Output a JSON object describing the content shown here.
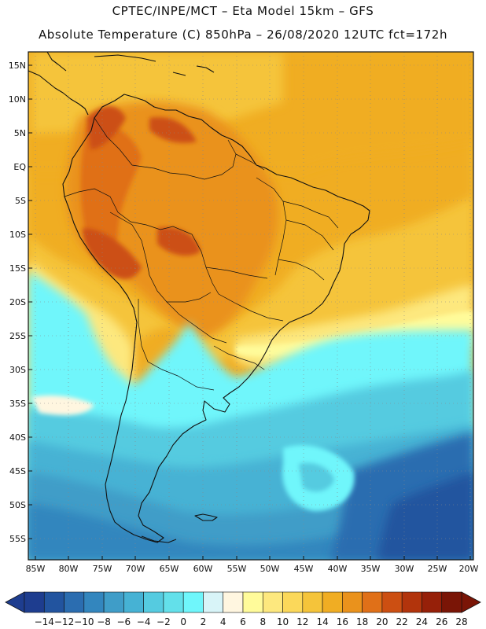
{
  "header": {
    "line1": "CPTEC/INPE/MCT –  Eta Model 15km – GFS",
    "line2": "Absolute Temperature (C) 850hPa – 26/08/2020 12UTC fct=172h"
  },
  "map": {
    "lat_labels": [
      "15N",
      "10N",
      "5N",
      "EQ",
      "5S",
      "10S",
      "15S",
      "20S",
      "25S",
      "30S",
      "35S",
      "40S",
      "45S",
      "50S",
      "55S"
    ],
    "lon_labels": [
      "85W",
      "80W",
      "75W",
      "70W",
      "65W",
      "60W",
      "55W",
      "50W",
      "45W",
      "40W",
      "35W",
      "30W",
      "25W",
      "20W"
    ]
  },
  "colorbar": {
    "colors": [
      "#1e3d8f",
      "#22549f",
      "#2b6db0",
      "#3386be",
      "#3f9dc8",
      "#46b2d4",
      "#55cbe0",
      "#63e0ea",
      "#6ff6fb",
      "#d8f4f8",
      "#fff6e0",
      "#fffb9a",
      "#fde87e",
      "#fbd85a",
      "#f5c43a",
      "#f0ad23",
      "#ea921c",
      "#e07018",
      "#cc4f12",
      "#b2340c",
      "#962009",
      "#7a1506"
    ],
    "labels": [
      "-14",
      "-12",
      "-10",
      "-8",
      "-6",
      "-4",
      "-2",
      "0",
      "2",
      "4",
      "6",
      "8",
      "10",
      "12",
      "14",
      "16",
      "18",
      "20",
      "22",
      "24",
      "26",
      "28"
    ]
  }
}
